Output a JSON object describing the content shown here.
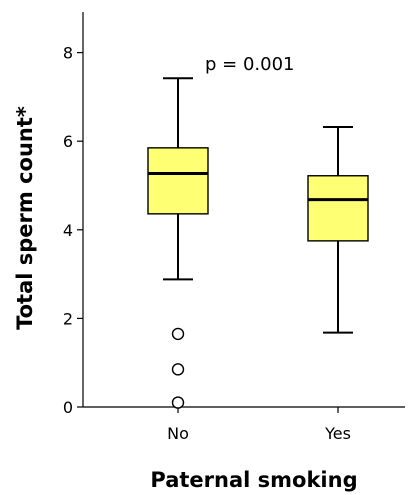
{
  "chart_data": {
    "type": "box",
    "title": "",
    "xlabel": "Paternal smoking",
    "ylabel": "Total sperm count*",
    "ylim": [
      0,
      8.8
    ],
    "yticks": [
      0,
      2,
      4,
      6,
      8
    ],
    "categories": [
      "No",
      "Yes"
    ],
    "boxes": [
      {
        "category": "No",
        "whisker_low": 2.88,
        "q1": 4.36,
        "median": 5.27,
        "q3": 5.85,
        "whisker_high": 7.42,
        "outliers": [
          1.65,
          0.85,
          0.1
        ]
      },
      {
        "category": "Yes",
        "whisker_low": 1.68,
        "q1": 3.75,
        "median": 4.68,
        "q3": 5.22,
        "whisker_high": 6.32,
        "outliers": []
      }
    ],
    "annotation": "p = 0.001",
    "box_fill": "#ffff73",
    "grid": false,
    "legend": "none"
  }
}
